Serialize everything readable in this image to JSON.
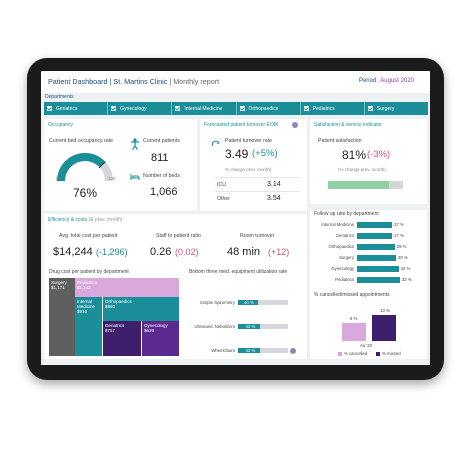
{
  "header": {
    "title_main": "Patient Dashboard | St. Martins Clinic",
    "title_sub": " | Monthly report",
    "period_label": "Period",
    "period_value": "August 2020"
  },
  "departments": {
    "label": "Departments",
    "items": [
      "Geriatrics",
      "Gynecology",
      "Internal Medicine",
      "Orthopaedics",
      "Pediatrics",
      "Surgery"
    ]
  },
  "occupancy": {
    "title": "Occupancy",
    "bed_occupancy_label": "Current bed occupancy rate",
    "gauge_min": "0",
    "gauge_max": "100",
    "gauge_value": "76%",
    "gauge_fraction": 0.76,
    "current_patients_label": "Current patients",
    "current_patients": "811",
    "beds_label": "Number of beds",
    "beds": "1,066"
  },
  "turnover": {
    "title": "Forecasted patient turnover EOM",
    "rate_label": "Patient turnover rate",
    "value": "3.49",
    "change": "(+5%)",
    "change_note": "% change prev. month)",
    "rows": [
      {
        "label": "ICU",
        "value": "3.14"
      },
      {
        "label": "Other",
        "value": "3.54"
      }
    ]
  },
  "satisfaction": {
    "title": "Satisfaction & service indicator",
    "label": "Patient satisfaction",
    "value": "81%",
    "change": "(-3%)",
    "change_note": "(% change prev. month)",
    "bar_fraction": 0.81,
    "followup_title": "Follow up rate by department",
    "followup": [
      {
        "label": "Internal Medicine",
        "value": 27,
        "text": "27 %"
      },
      {
        "label": "Geriatrics",
        "value": 27,
        "text": "27 %"
      },
      {
        "label": "Orthopaedics",
        "value": 29,
        "text": "29 %"
      },
      {
        "label": "Surgery",
        "value": 30,
        "text": "30 %"
      },
      {
        "label": "Gynecology",
        "value": 32,
        "text": "32 %"
      },
      {
        "label": "Pediatrics",
        "value": 33,
        "text": "33 %"
      }
    ],
    "cancel_title": "% cancelled/missed appointments",
    "cancel_category": "Au '20",
    "cancelled": {
      "value": 9,
      "text": "9 %",
      "legend": "% cancelled",
      "color": "#d9a8dc"
    },
    "missed": {
      "value": 13,
      "text": "13 %",
      "legend": "% missed",
      "color": "#3e1f6e"
    }
  },
  "efficiency": {
    "title": "Efficiency & costs",
    "title_note": "(& prev. month)",
    "avg_cost_label": "Avg. total cost per patient",
    "avg_cost": "$14,244",
    "avg_cost_change": "(-1,296)",
    "staff_ratio_label": "Staff to patient ratio",
    "staff_ratio": "0.26",
    "staff_ratio_change": "(0.02)",
    "room_turnover_label": "Room turnover",
    "room_turnover": "48 min",
    "room_turnover_change": "(+12)",
    "drug_title": "Drug cost per patient by department",
    "treemap": [
      {
        "name": "Surgery",
        "value": "$1,171",
        "color": "#5f5f5f"
      },
      {
        "name": "Pediatrics",
        "value": "$1,142",
        "color": "#d9a8dc"
      },
      {
        "name": "Internal Medicine",
        "value": "$916",
        "color": "#1a8f9a"
      },
      {
        "name": "Orthopaedics",
        "value": "$860",
        "color": "#1a8f9a"
      },
      {
        "name": "Geriatrics",
        "value": "$757",
        "color": "#3e1f6e"
      },
      {
        "name": "Gynecology",
        "value": "$639",
        "color": "#5b2a8f"
      }
    ],
    "equip_title": "Bottom three med. equipment utilization rate",
    "equipment": [
      {
        "label": "Simple Spirometry",
        "value": 40,
        "text": "40 %"
      },
      {
        "label": "Ultrasonic Nebulizers",
        "value": 43,
        "text": "43 %"
      },
      {
        "label": "Wheelchairs",
        "value": 43,
        "text": "43 %"
      }
    ]
  }
}
